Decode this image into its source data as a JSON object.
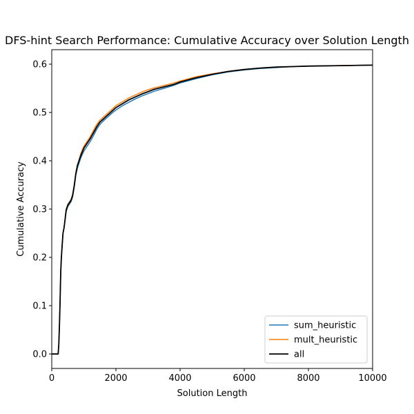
{
  "chart_data": {
    "type": "line",
    "title": "DFS-hint Search Performance: Cumulative Accuracy over Solution Length",
    "xlabel": "Solution Length",
    "ylabel": "Cumulative Accuracy",
    "xlim": [
      0,
      10000
    ],
    "ylim": [
      -0.03,
      0.63
    ],
    "xticks": [
      0,
      2000,
      4000,
      6000,
      8000,
      10000
    ],
    "yticks": [
      0.0,
      0.1,
      0.2,
      0.3,
      0.4,
      0.5,
      0.6
    ],
    "xtick_labels": [
      "0",
      "2000",
      "4000",
      "6000",
      "8000",
      "10000"
    ],
    "ytick_labels": [
      "0.0",
      "0.1",
      "0.2",
      "0.3",
      "0.4",
      "0.5",
      "0.6"
    ],
    "grid": false,
    "legend_position": "lower right",
    "series": [
      {
        "name": "sum_heuristic",
        "color": "#1f77b4",
        "x": [
          0,
          200,
          220,
          240,
          260,
          280,
          300,
          320,
          350,
          380,
          400,
          450,
          500,
          550,
          600,
          650,
          700,
          750,
          800,
          850,
          900,
          1000,
          1100,
          1200,
          1300,
          1400,
          1500,
          1600,
          1700,
          1800,
          1900,
          2000,
          2200,
          2400,
          2600,
          2800,
          3000,
          3200,
          3500,
          3800,
          4000,
          4500,
          5000,
          5500,
          6000,
          6500,
          7000,
          7500,
          8000,
          9000,
          10000
        ],
        "y": [
          0.0,
          0.0,
          0.02,
          0.06,
          0.11,
          0.17,
          0.2,
          0.22,
          0.25,
          0.26,
          0.27,
          0.295,
          0.305,
          0.31,
          0.315,
          0.325,
          0.345,
          0.37,
          0.385,
          0.395,
          0.405,
          0.42,
          0.43,
          0.44,
          0.452,
          0.465,
          0.475,
          0.482,
          0.488,
          0.494,
          0.5,
          0.505,
          0.514,
          0.521,
          0.528,
          0.534,
          0.539,
          0.544,
          0.55,
          0.556,
          0.561,
          0.57,
          0.578,
          0.584,
          0.588,
          0.591,
          0.593,
          0.595,
          0.596,
          0.597,
          0.598
        ]
      },
      {
        "name": "mult_heuristic",
        "color": "#ff7f0e",
        "x": [
          0,
          200,
          220,
          240,
          260,
          280,
          300,
          320,
          350,
          380,
          400,
          450,
          500,
          550,
          600,
          650,
          700,
          750,
          800,
          850,
          900,
          1000,
          1100,
          1200,
          1300,
          1400,
          1500,
          1600,
          1700,
          1800,
          1900,
          2000,
          2200,
          2400,
          2600,
          2800,
          3000,
          3200,
          3500,
          3800,
          4000,
          4500,
          5000,
          5500,
          6000,
          6500,
          7000,
          7500,
          8000,
          9000,
          10000
        ],
        "y": [
          0.0,
          0.0,
          0.02,
          0.06,
          0.11,
          0.17,
          0.2,
          0.22,
          0.25,
          0.26,
          0.27,
          0.3,
          0.31,
          0.315,
          0.32,
          0.33,
          0.35,
          0.375,
          0.392,
          0.402,
          0.414,
          0.43,
          0.44,
          0.45,
          0.463,
          0.475,
          0.484,
          0.49,
          0.496,
          0.502,
          0.508,
          0.514,
          0.522,
          0.53,
          0.536,
          0.542,
          0.547,
          0.551,
          0.556,
          0.561,
          0.565,
          0.574,
          0.58,
          0.585,
          0.589,
          0.592,
          0.594,
          0.595,
          0.596,
          0.597,
          0.598
        ]
      },
      {
        "name": "all",
        "color": "#000000",
        "x": [
          0,
          200,
          220,
          240,
          260,
          280,
          300,
          320,
          350,
          380,
          400,
          450,
          500,
          550,
          600,
          650,
          700,
          750,
          800,
          850,
          900,
          1000,
          1100,
          1200,
          1300,
          1400,
          1500,
          1600,
          1700,
          1800,
          1900,
          2000,
          2200,
          2400,
          2600,
          2800,
          3000,
          3200,
          3500,
          3800,
          4000,
          4500,
          5000,
          5500,
          6000,
          6500,
          7000,
          7500,
          8000,
          9000,
          10000
        ],
        "y": [
          0.0,
          0.0,
          0.02,
          0.06,
          0.11,
          0.17,
          0.2,
          0.22,
          0.25,
          0.26,
          0.27,
          0.298,
          0.308,
          0.313,
          0.318,
          0.328,
          0.348,
          0.373,
          0.39,
          0.4,
          0.41,
          0.426,
          0.436,
          0.446,
          0.458,
          0.47,
          0.48,
          0.486,
          0.492,
          0.498,
          0.504,
          0.51,
          0.518,
          0.526,
          0.532,
          0.538,
          0.543,
          0.548,
          0.553,
          0.558,
          0.563,
          0.572,
          0.579,
          0.585,
          0.589,
          0.592,
          0.594,
          0.595,
          0.596,
          0.597,
          0.598
        ]
      }
    ]
  }
}
